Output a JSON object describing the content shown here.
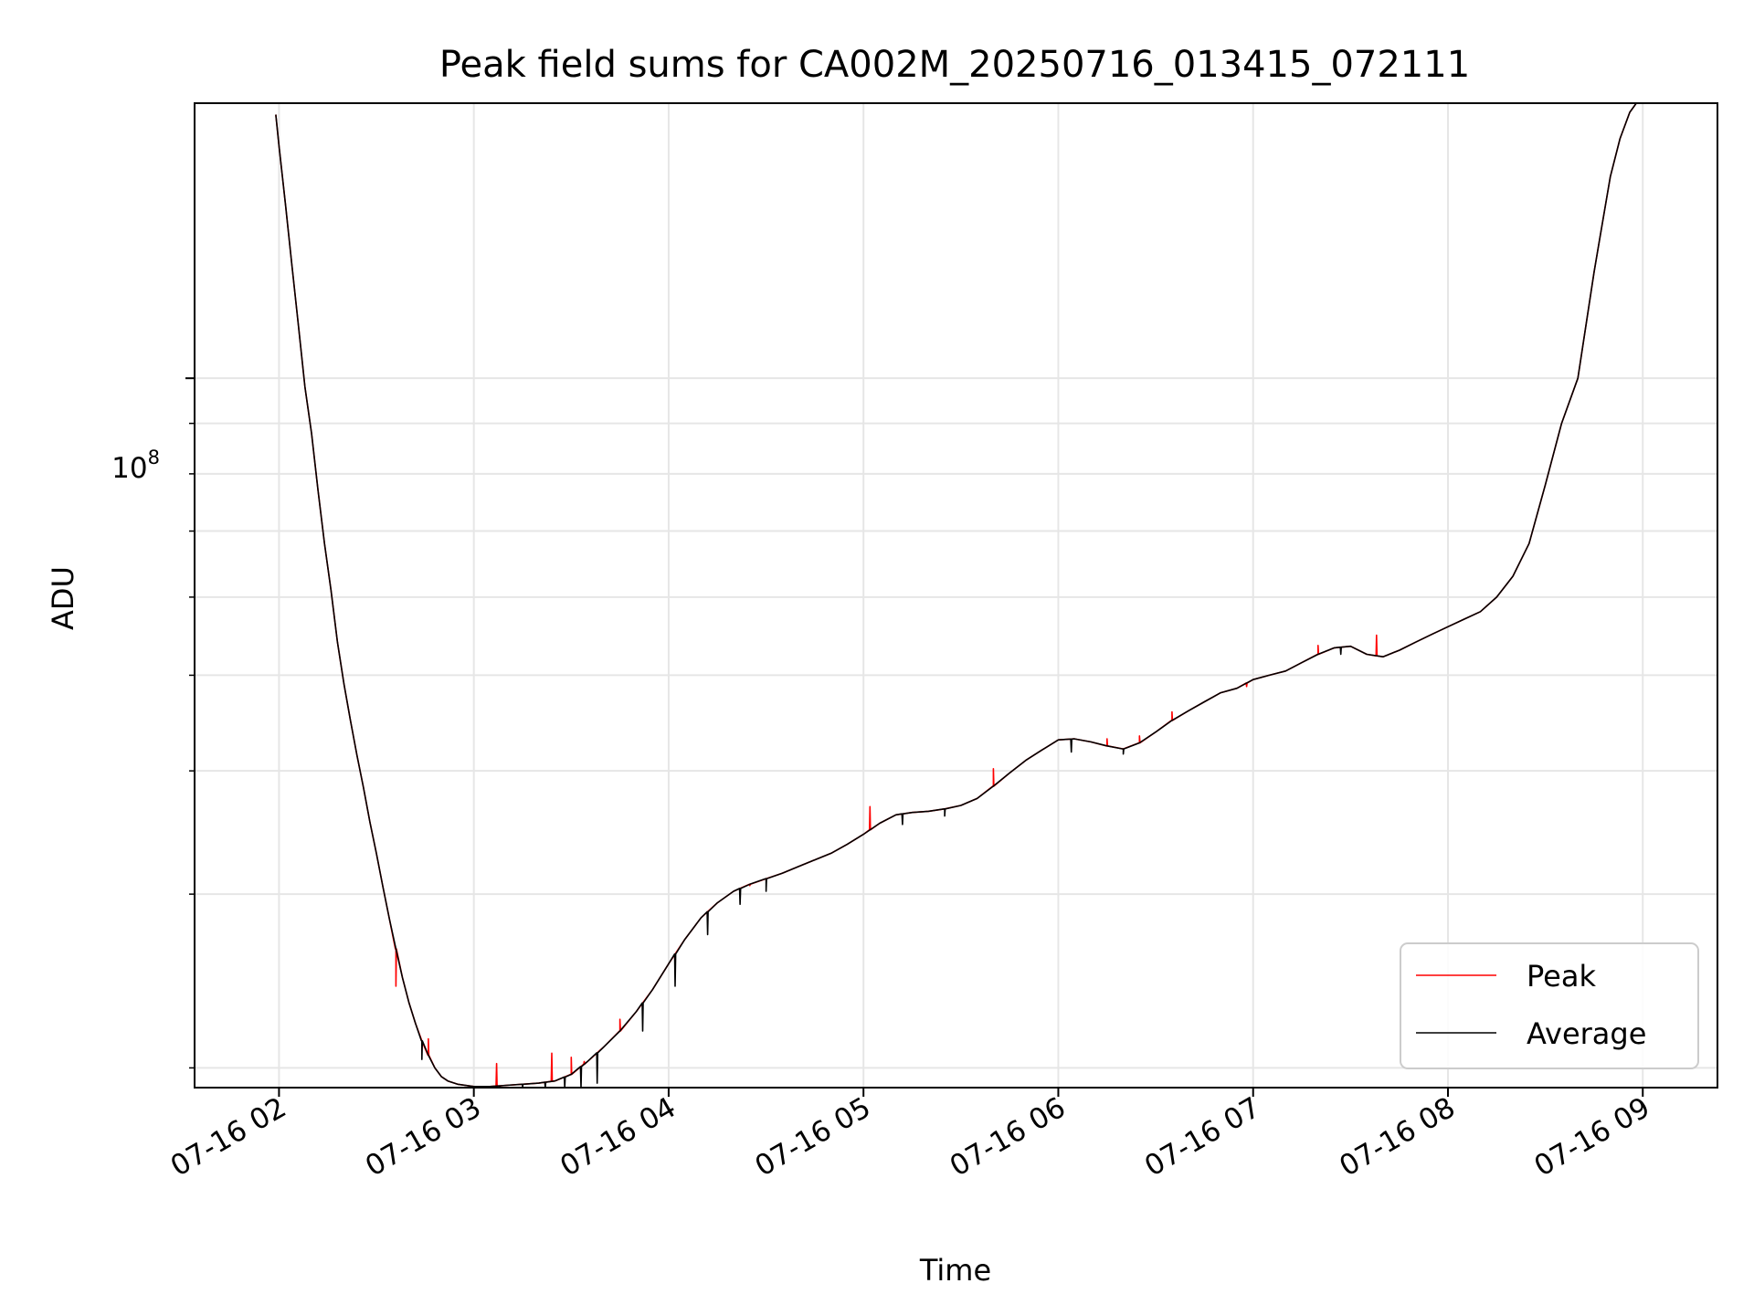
{
  "chart_data": {
    "type": "line",
    "title": "Peak field sums for CA002M_20250716_013415_072111",
    "xlabel": "Time",
    "ylabel": "ADU",
    "y_scale": "log",
    "grid": true,
    "legend_position": "lower-right",
    "x_tick_labels": [
      "07-16 02",
      "07-16 03",
      "07-16 04",
      "07-16 05",
      "07-16 06",
      "07-16 07",
      "07-16 08",
      "07-16 09"
    ],
    "y_major_tick_label": "10",
    "y_major_tick_exponent": "8",
    "xlim": [
      "2025-07-16 01:34:00",
      "2025-07-16 09:23:00"
    ],
    "ylim": [
      19100000,
      190000000
    ],
    "series": [
      {
        "name": "Peak",
        "color": "#ff0000",
        "x": [
          "01:59",
          "02:00",
          "02:02",
          "02:04",
          "02:06",
          "02:08",
          "02:10",
          "02:12",
          "02:14",
          "02:16",
          "02:18",
          "02:20",
          "02:22",
          "02:24",
          "02:26",
          "02:28",
          "02:30",
          "02:32",
          "02:34",
          "02:36",
          "02:38",
          "02:40",
          "02:42",
          "02:44",
          "02:46",
          "02:48",
          "02:50",
          "02:52",
          "02:55",
          "03:00",
          "03:05",
          "03:10",
          "03:15",
          "03:20",
          "03:25",
          "03:30",
          "03:35",
          "03:40",
          "03:45",
          "03:50",
          "03:55",
          "04:00",
          "04:05",
          "04:10",
          "04:15",
          "04:20",
          "04:25",
          "04:30",
          "04:35",
          "04:40",
          "04:45",
          "04:50",
          "04:55",
          "05:00",
          "05:05",
          "05:10",
          "05:15",
          "05:20",
          "05:25",
          "05:30",
          "05:35",
          "05:40",
          "05:45",
          "05:50",
          "05:55",
          "06:00",
          "06:05",
          "06:10",
          "06:15",
          "06:20",
          "06:25",
          "06:30",
          "06:35",
          "06:40",
          "06:45",
          "06:50",
          "06:55",
          "07:00",
          "07:05",
          "07:10",
          "07:15",
          "07:20",
          "07:25",
          "07:30",
          "07:35",
          "07:40",
          "07:45",
          "07:50",
          "07:55",
          "08:00",
          "08:05",
          "08:10",
          "08:15",
          "08:20",
          "08:25",
          "08:30",
          "08:35",
          "08:40",
          "08:45",
          "08:47",
          "08:50",
          "08:53",
          "08:56",
          "08:59",
          "09:01"
        ],
        "y": [
          185000000,
          172000000,
          150000000,
          130000000,
          113000000,
          98000000,
          88000000,
          77000000,
          68000000,
          61000000,
          54000000,
          49000000,
          45000000,
          41500000,
          38500000,
          35500000,
          33000000,
          30500000,
          28300000,
          26400000,
          24700000,
          23300000,
          22200000,
          21300000,
          20600000,
          20000000,
          19600000,
          19400000,
          19250000,
          19150000,
          19150000,
          19200000,
          19250000,
          19300000,
          19400000,
          19700000,
          20300000,
          21000000,
          21800000,
          22800000,
          24000000,
          25500000,
          27000000,
          28400000,
          29400000,
          30200000,
          30700000,
          31100000,
          31500000,
          32000000,
          32500000,
          33000000,
          33700000,
          34500000,
          35400000,
          36100000,
          36300000,
          36400000,
          36600000,
          36900000,
          37500000,
          38600000,
          39800000,
          41000000,
          42000000,
          43000000,
          43100000,
          42800000,
          42400000,
          42100000,
          42700000,
          43800000,
          45000000,
          46000000,
          47000000,
          48000000,
          48500000,
          49500000,
          50000000,
          50500000,
          51500000,
          52500000,
          53300000,
          53500000,
          52500000,
          52200000,
          53000000,
          54000000,
          55000000,
          56000000,
          57000000,
          58000000,
          60000000,
          63000000,
          68000000,
          78000000,
          90000000,
          100000000,
          128000000,
          140000000,
          160000000,
          175000000,
          186000000,
          192000000,
          195000000
        ],
        "noise_spikes_up": [
          [
            "02:36",
            24200000
          ],
          [
            "02:46",
            21400000
          ],
          [
            "03:07",
            20200000
          ],
          [
            "03:24",
            20700000
          ],
          [
            "03:30",
            20500000
          ],
          [
            "03:34",
            20300000
          ],
          [
            "03:45",
            22400000
          ],
          [
            "04:25",
            30600000
          ],
          [
            "05:02",
            36800000
          ],
          [
            "05:40",
            40200000
          ],
          [
            "06:15",
            43100000
          ],
          [
            "06:25",
            43400000
          ],
          [
            "06:35",
            45900000
          ],
          [
            "06:58",
            48700000
          ],
          [
            "07:20",
            53600000
          ],
          [
            "07:38",
            54900000
          ]
        ]
      },
      {
        "name": "Average",
        "color": "#000000",
        "x": [
          "01:59",
          "02:00",
          "02:02",
          "02:04",
          "02:06",
          "02:08",
          "02:10",
          "02:12",
          "02:14",
          "02:16",
          "02:18",
          "02:20",
          "02:22",
          "02:24",
          "02:26",
          "02:28",
          "02:30",
          "02:32",
          "02:34",
          "02:36",
          "02:38",
          "02:40",
          "02:42",
          "02:44",
          "02:46",
          "02:48",
          "02:50",
          "02:52",
          "02:55",
          "03:00",
          "03:05",
          "03:10",
          "03:15",
          "03:20",
          "03:25",
          "03:30",
          "03:35",
          "03:40",
          "03:45",
          "03:50",
          "03:55",
          "04:00",
          "04:05",
          "04:10",
          "04:15",
          "04:20",
          "04:25",
          "04:30",
          "04:35",
          "04:40",
          "04:45",
          "04:50",
          "04:55",
          "05:00",
          "05:05",
          "05:10",
          "05:15",
          "05:20",
          "05:25",
          "05:30",
          "05:35",
          "05:40",
          "05:45",
          "05:50",
          "05:55",
          "06:00",
          "06:05",
          "06:10",
          "06:15",
          "06:20",
          "06:25",
          "06:30",
          "06:35",
          "06:40",
          "06:45",
          "06:50",
          "06:55",
          "07:00",
          "07:05",
          "07:10",
          "07:15",
          "07:20",
          "07:25",
          "07:30",
          "07:35",
          "07:40",
          "07:45",
          "07:50",
          "07:55",
          "08:00",
          "08:05",
          "08:10",
          "08:15",
          "08:20",
          "08:25",
          "08:30",
          "08:35",
          "08:40",
          "08:45",
          "08:47",
          "08:50",
          "08:53",
          "08:56",
          "08:59",
          "09:01"
        ],
        "y": [
          185000000,
          172000000,
          150000000,
          130000000,
          113000000,
          98000000,
          88000000,
          77000000,
          68000000,
          61000000,
          54000000,
          49000000,
          45000000,
          41500000,
          38500000,
          35500000,
          33000000,
          30500000,
          28300000,
          26400000,
          24700000,
          23300000,
          22200000,
          21300000,
          20600000,
          20000000,
          19600000,
          19400000,
          19250000,
          19150000,
          19150000,
          19200000,
          19250000,
          19300000,
          19400000,
          19700000,
          20300000,
          21000000,
          21800000,
          22800000,
          24000000,
          25500000,
          27000000,
          28400000,
          29400000,
          30200000,
          30700000,
          31100000,
          31500000,
          32000000,
          32500000,
          33000000,
          33700000,
          34500000,
          35400000,
          36100000,
          36300000,
          36400000,
          36600000,
          36900000,
          37500000,
          38600000,
          39800000,
          41000000,
          42000000,
          43000000,
          43100000,
          42800000,
          42400000,
          42100000,
          42700000,
          43800000,
          45000000,
          46000000,
          47000000,
          48000000,
          48500000,
          49500000,
          50000000,
          50500000,
          51500000,
          52500000,
          53300000,
          53500000,
          52500000,
          52200000,
          53000000,
          54000000,
          55000000,
          56000000,
          57000000,
          58000000,
          60000000,
          63000000,
          68000000,
          78000000,
          90000000,
          100000000,
          128000000,
          140000000,
          160000000,
          175000000,
          186000000,
          192000000,
          195000000
        ],
        "noise_spikes_down": [
          [
            "02:44",
            20400000
          ],
          [
            "03:08",
            19100000
          ],
          [
            "03:15",
            19100000
          ],
          [
            "03:22",
            19100000
          ],
          [
            "03:28",
            19100000
          ],
          [
            "03:33",
            19100000
          ],
          [
            "03:38",
            19300000
          ],
          [
            "03:52",
            21800000
          ],
          [
            "04:02",
            24200000
          ],
          [
            "04:12",
            27300000
          ],
          [
            "04:22",
            29300000
          ],
          [
            "04:30",
            30200000
          ],
          [
            "05:12",
            35300000
          ],
          [
            "05:25",
            36000000
          ],
          [
            "06:04",
            41800000
          ],
          [
            "06:20",
            41600000
          ],
          [
            "07:27",
            52500000
          ]
        ]
      }
    ]
  }
}
